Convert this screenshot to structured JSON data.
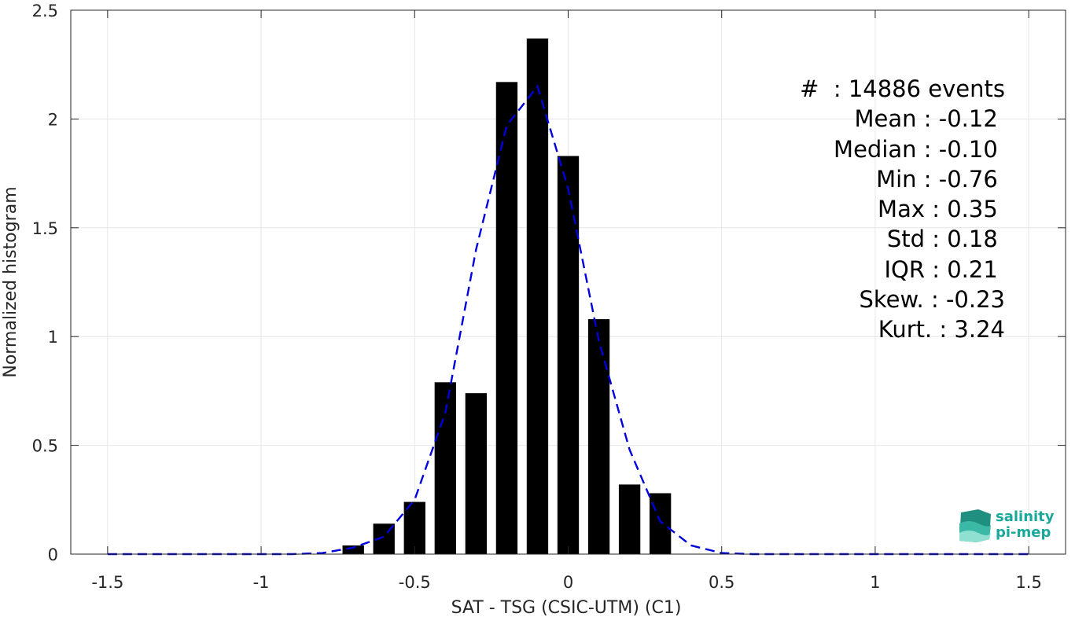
{
  "chart_data": {
    "type": "bar",
    "xlabel": "SAT - TSG (CSIC-UTM) (C1)",
    "ylabel": "Normalized histogram",
    "xlim": [
      -1.62,
      1.62
    ],
    "ylim": [
      0,
      2.5
    ],
    "xticks": [
      -1.5,
      -1,
      -0.5,
      0,
      0.5,
      1,
      1.5
    ],
    "xtick_labels": [
      "-1.5",
      "-1",
      "-0.5",
      "0",
      "0.5",
      "1",
      "1.5"
    ],
    "yticks": [
      0,
      0.5,
      1,
      1.5,
      2,
      2.5
    ],
    "ytick_labels": [
      "0",
      "0.5",
      "1",
      "1.5",
      "2",
      "2.5"
    ],
    "grid": true,
    "bar_width": 0.07,
    "bars": {
      "x": [
        -0.7,
        -0.6,
        -0.5,
        -0.4,
        -0.3,
        -0.2,
        -0.1,
        0.0,
        0.1,
        0.2,
        0.3
      ],
      "values": [
        0.04,
        0.14,
        0.24,
        0.79,
        0.74,
        2.17,
        2.37,
        1.83,
        1.08,
        0.32,
        0.28
      ],
      "color": "#000000"
    },
    "fit_line": {
      "style": "dashed",
      "color": "#0000dd",
      "x": [
        -1.5,
        -1.4,
        -1.3,
        -1.2,
        -1.1,
        -1.0,
        -0.9,
        -0.8,
        -0.7,
        -0.6,
        -0.5,
        -0.4,
        -0.3,
        -0.2,
        -0.1,
        0.0,
        0.1,
        0.2,
        0.3,
        0.4,
        0.5,
        0.6,
        0.7,
        0.8,
        0.9,
        1.0,
        1.1,
        1.2,
        1.3,
        1.4,
        1.5
      ],
      "y": [
        0,
        0,
        0,
        0,
        0,
        0,
        0,
        0.005,
        0.03,
        0.08,
        0.25,
        0.65,
        1.4,
        1.97,
        2.15,
        1.68,
        0.98,
        0.48,
        0.15,
        0.04,
        0.005,
        0,
        0,
        0,
        0,
        0,
        0,
        0,
        0,
        0,
        0
      ]
    },
    "stats": [
      "#  : 14886 events",
      "Mean : -0.12 ",
      "Median : -0.10 ",
      "Min : -0.76 ",
      "Max : 0.35 ",
      "Std : 0.18 ",
      "IQR : 0.21 ",
      "Skew. : -0.23",
      "Kurt. : 3.24"
    ]
  },
  "logo": {
    "line1": "salinity",
    "line2": "pi-mep",
    "color": "#1aa89a"
  }
}
